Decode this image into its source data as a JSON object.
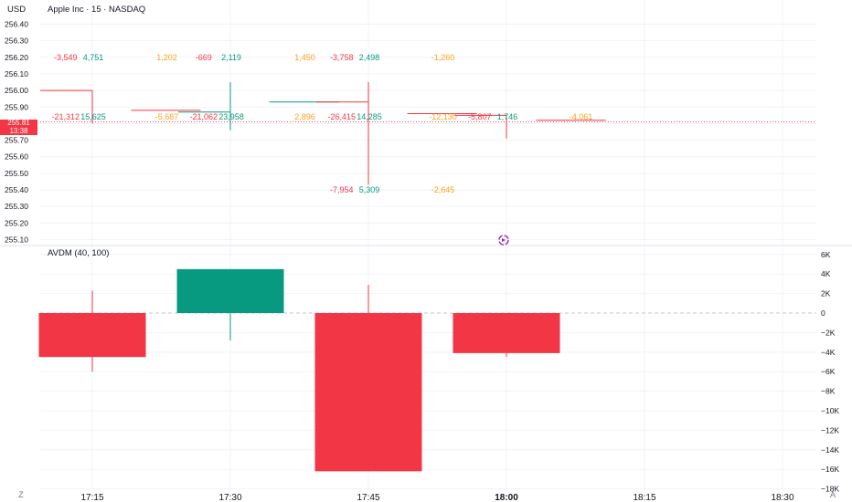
{
  "header": {
    "currency": "USD",
    "symbol_title": "Apple Inc · 15 · NASDAQ",
    "price_badge": "255.81",
    "countdown_badge": "13:38"
  },
  "indicator": {
    "title": "AVDM (40, 100)"
  },
  "bottom": {
    "left_button": "Z",
    "right_button": "A"
  },
  "colors": {
    "up": "#089981",
    "down": "#f23645",
    "neutral": "#f7a21b",
    "grid": "#f0f3fa"
  },
  "chart_data": [
    {
      "type": "price_footprint",
      "y_ticks": [
        256.4,
        256.3,
        256.2,
        256.1,
        256.0,
        255.9,
        255.8,
        255.7,
        255.6,
        255.5,
        255.4,
        255.3,
        255.2,
        255.1
      ],
      "x_ticks": [
        "17:15",
        "17:30",
        "17:45",
        "18:00",
        "18:15",
        "18:30"
      ],
      "last_price": 255.81,
      "last_price_time": "18:00",
      "bars": [
        {
          "time": "17:15",
          "open": 256.0,
          "close": 256.0,
          "high": 256.0,
          "low": 255.8,
          "color": "down"
        },
        {
          "time": "17:23",
          "open": 255.88,
          "close": 255.88,
          "high": 255.88,
          "low": 255.88,
          "color": "down"
        },
        {
          "time": "17:30",
          "open": 255.87,
          "close": 255.87,
          "high": 256.05,
          "low": 255.76,
          "color": "up"
        },
        {
          "time": "17:38",
          "open": 255.93,
          "close": 255.93,
          "high": 255.93,
          "low": 255.93,
          "color": "up"
        },
        {
          "time": "17:45",
          "open": 255.93,
          "close": 255.93,
          "high": 256.05,
          "low": 255.43,
          "color": "down"
        },
        {
          "time": "17:53",
          "open": 255.86,
          "close": 255.86,
          "high": 255.86,
          "low": 255.86,
          "color": "down"
        },
        {
          "time": "18:00",
          "open": 255.85,
          "close": 255.85,
          "high": 255.85,
          "low": 255.71,
          "color": "down"
        },
        {
          "time": "18:07",
          "open": 255.82,
          "close": 255.82,
          "high": 255.82,
          "low": 255.82,
          "color": "down"
        }
      ],
      "annotations": [
        {
          "time": "17:12",
          "price": 256.2,
          "text": "-3,549",
          "color": "down"
        },
        {
          "time": "17:15",
          "price": 256.2,
          "text": "4,751",
          "color": "up"
        },
        {
          "time": "17:23",
          "price": 256.2,
          "text": "1,202",
          "color": "neutral"
        },
        {
          "time": "17:27",
          "price": 256.2,
          "text": "-669",
          "color": "down"
        },
        {
          "time": "17:30",
          "price": 256.2,
          "text": "2,119",
          "color": "up"
        },
        {
          "time": "17:38",
          "price": 256.2,
          "text": "1,450",
          "color": "neutral"
        },
        {
          "time": "17:42",
          "price": 256.2,
          "text": "-3,758",
          "color": "down"
        },
        {
          "time": "17:45",
          "price": 256.2,
          "text": "2,498",
          "color": "up"
        },
        {
          "time": "17:53",
          "price": 256.2,
          "text": "-1,260",
          "color": "neutral"
        },
        {
          "time": "17:12",
          "price": 255.84,
          "text": "-21,312",
          "color": "down"
        },
        {
          "time": "17:15",
          "price": 255.84,
          "text": "15,625",
          "color": "up"
        },
        {
          "time": "17:23",
          "price": 255.84,
          "text": "-5,687",
          "color": "neutral"
        },
        {
          "time": "17:27",
          "price": 255.84,
          "text": "-21,062",
          "color": "down"
        },
        {
          "time": "17:30",
          "price": 255.84,
          "text": "23,958",
          "color": "up"
        },
        {
          "time": "17:38",
          "price": 255.84,
          "text": "2,896",
          "color": "neutral"
        },
        {
          "time": "17:42",
          "price": 255.84,
          "text": "-26,415",
          "color": "down"
        },
        {
          "time": "17:45",
          "price": 255.84,
          "text": "14,285",
          "color": "up"
        },
        {
          "time": "17:53",
          "price": 255.84,
          "text": "-12,130",
          "color": "neutral"
        },
        {
          "time": "17:57",
          "price": 255.84,
          "text": "-5,807",
          "color": "down"
        },
        {
          "time": "18:00",
          "price": 255.84,
          "text": "1,746",
          "color": "up"
        },
        {
          "time": "18:08",
          "price": 255.84,
          "text": "-4,061",
          "color": "neutral"
        },
        {
          "time": "17:42",
          "price": 255.4,
          "text": "-7,954",
          "color": "down"
        },
        {
          "time": "17:45",
          "price": 255.4,
          "text": "5,309",
          "color": "up"
        },
        {
          "time": "17:53",
          "price": 255.4,
          "text": "-2,645",
          "color": "neutral"
        }
      ]
    },
    {
      "type": "bar",
      "title": "AVDM (40, 100)",
      "y_ticks": [
        "6K",
        "4K",
        "2K",
        "0",
        "−2K",
        "−4K",
        "−6K",
        "−8K",
        "−10K",
        "−12K",
        "−14K",
        "−16K",
        "−18K"
      ],
      "ylim": [
        -18000,
        6000
      ],
      "bars": [
        {
          "time": "17:15",
          "value": -4500,
          "color": "down"
        },
        {
          "time": "17:30",
          "value": 4500,
          "color": "up"
        },
        {
          "time": "17:45",
          "value": -16200,
          "color": "down"
        },
        {
          "time": "18:00",
          "value": -4100,
          "color": "down"
        }
      ],
      "wicks": [
        {
          "time": "17:15",
          "high": 2300,
          "low": -6000,
          "color": "down"
        },
        {
          "time": "17:30",
          "high": 4500,
          "low": -2800,
          "color": "up"
        },
        {
          "time": "17:45",
          "high": 2900,
          "low": -16200,
          "color": "down"
        },
        {
          "time": "18:00",
          "high": -4100,
          "low": -4500,
          "color": "down"
        }
      ]
    }
  ]
}
